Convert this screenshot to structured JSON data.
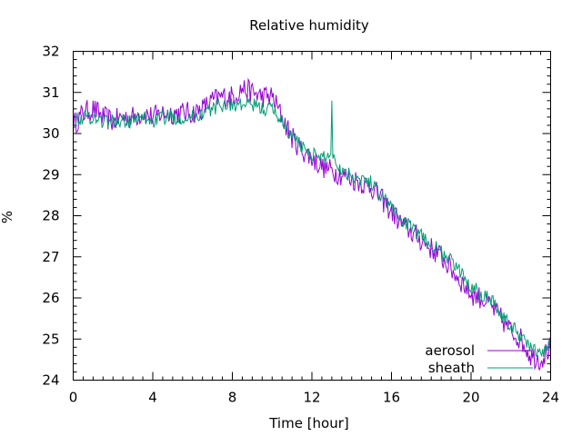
{
  "chart_data": {
    "type": "line",
    "title": "Relative humidity",
    "xlabel": "Time [hour]",
    "ylabel": "%",
    "xlim": [
      0,
      24
    ],
    "ylim": [
      24,
      32
    ],
    "xticks": [
      0,
      4,
      8,
      12,
      16,
      20,
      24
    ],
    "yticks": [
      24,
      25,
      26,
      27,
      28,
      29,
      30,
      31,
      32
    ],
    "x_minor_step": 0.5,
    "y_minor_step": 0.2,
    "grid": false,
    "legend_position": "bottom-right",
    "series": [
      {
        "name": "aerosol",
        "color": "#9400d3",
        "x": [
          0,
          0.5,
          1,
          1.5,
          2,
          2.5,
          3,
          3.5,
          4,
          4.5,
          5,
          5.5,
          6,
          6.5,
          7,
          7.5,
          8,
          8.5,
          9,
          9.5,
          10,
          10.5,
          11,
          11.5,
          12,
          12.5,
          13,
          13.5,
          14,
          14.5,
          15,
          15.5,
          16,
          16.5,
          17,
          17.5,
          18,
          18.5,
          19,
          19.5,
          20,
          20.5,
          21,
          21.5,
          22,
          22.5,
          23,
          23.5,
          24
        ],
        "values": [
          30.2,
          30.5,
          30.6,
          30.4,
          30.3,
          30.4,
          30.4,
          30.5,
          30.4,
          30.5,
          30.5,
          30.5,
          30.5,
          30.6,
          30.8,
          30.9,
          30.9,
          31.1,
          31.0,
          30.9,
          30.9,
          30.4,
          29.9,
          29.6,
          29.4,
          29.2,
          29.1,
          29.0,
          28.9,
          28.8,
          28.7,
          28.4,
          28.1,
          27.8,
          27.6,
          27.4,
          27.2,
          27.0,
          26.7,
          26.4,
          26.1,
          26.0,
          25.8,
          25.5,
          25.2,
          25.0,
          24.6,
          24.5,
          24.8
        ],
        "noise": 0.28
      },
      {
        "name": "sheath",
        "color": "#009e73",
        "x": [
          0,
          0.5,
          1,
          1.5,
          2,
          2.5,
          3,
          3.5,
          4,
          4.5,
          5,
          5.5,
          6,
          6.5,
          7,
          7.5,
          8,
          8.5,
          9,
          9.5,
          10,
          10.5,
          11,
          11.5,
          12,
          12.5,
          13,
          13.5,
          14,
          14.5,
          15,
          15.5,
          16,
          16.5,
          17,
          17.5,
          18,
          18.5,
          19,
          19.5,
          20,
          20.5,
          21,
          21.5,
          22,
          22.5,
          23,
          23.5,
          24
        ],
        "values": [
          30.3,
          30.4,
          30.4,
          30.3,
          30.3,
          30.3,
          30.3,
          30.4,
          30.3,
          30.4,
          30.4,
          30.4,
          30.4,
          30.5,
          30.6,
          30.7,
          30.7,
          30.7,
          30.7,
          30.6,
          30.6,
          30.3,
          29.9,
          29.7,
          29.5,
          29.4,
          29.5,
          29.1,
          29.0,
          28.9,
          28.8,
          28.5,
          28.2,
          27.9,
          27.7,
          27.5,
          27.3,
          27.1,
          26.9,
          26.6,
          26.3,
          26.1,
          26.0,
          25.6,
          25.3,
          25.1,
          24.8,
          24.6,
          24.9
        ],
        "noise": 0.18
      }
    ]
  }
}
